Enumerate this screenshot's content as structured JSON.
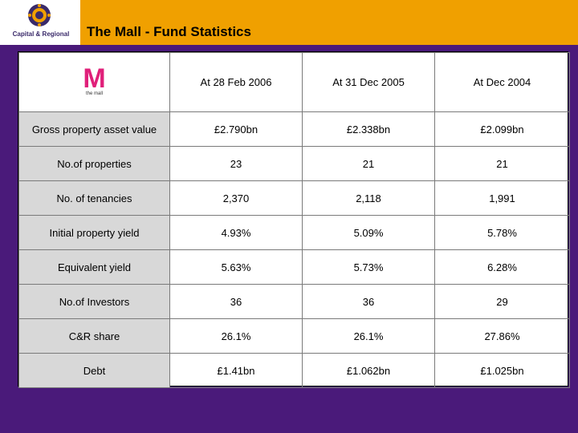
{
  "header": {
    "title": "The Mall - Fund Statistics",
    "logo_text": "Capital & Regional",
    "background_color": "#f0a000"
  },
  "page": {
    "background_color": "#4a1a7a"
  },
  "table": {
    "logo": {
      "letter": "M",
      "subtext": "the mall",
      "color": "#e0207a"
    },
    "columns": [
      "At 28 Feb 2006",
      "At 31 Dec 2005",
      "At Dec 2004"
    ],
    "rows": [
      {
        "label": "Gross property asset value",
        "values": [
          "£2.790bn",
          "£2.338bn",
          "£2.099bn"
        ]
      },
      {
        "label": "No.of properties",
        "values": [
          "23",
          "21",
          "21"
        ]
      },
      {
        "label": "No. of tenancies",
        "values": [
          "2,370",
          "2,118",
          "1,991"
        ]
      },
      {
        "label": "Initial property yield",
        "values": [
          "4.93%",
          "5.09%",
          "5.78%"
        ]
      },
      {
        "label": "Equivalent yield",
        "values": [
          "5.63%",
          "5.73%",
          "6.28%"
        ]
      },
      {
        "label": "No.of Investors",
        "values": [
          "36",
          "36",
          "29"
        ]
      },
      {
        "label": "C&R share",
        "values": [
          "26.1%",
          "26.1%",
          "27.86%"
        ]
      },
      {
        "label": "Debt",
        "values": [
          "£1.41bn",
          "£1.062bn",
          "£1.025bn"
        ]
      }
    ]
  }
}
